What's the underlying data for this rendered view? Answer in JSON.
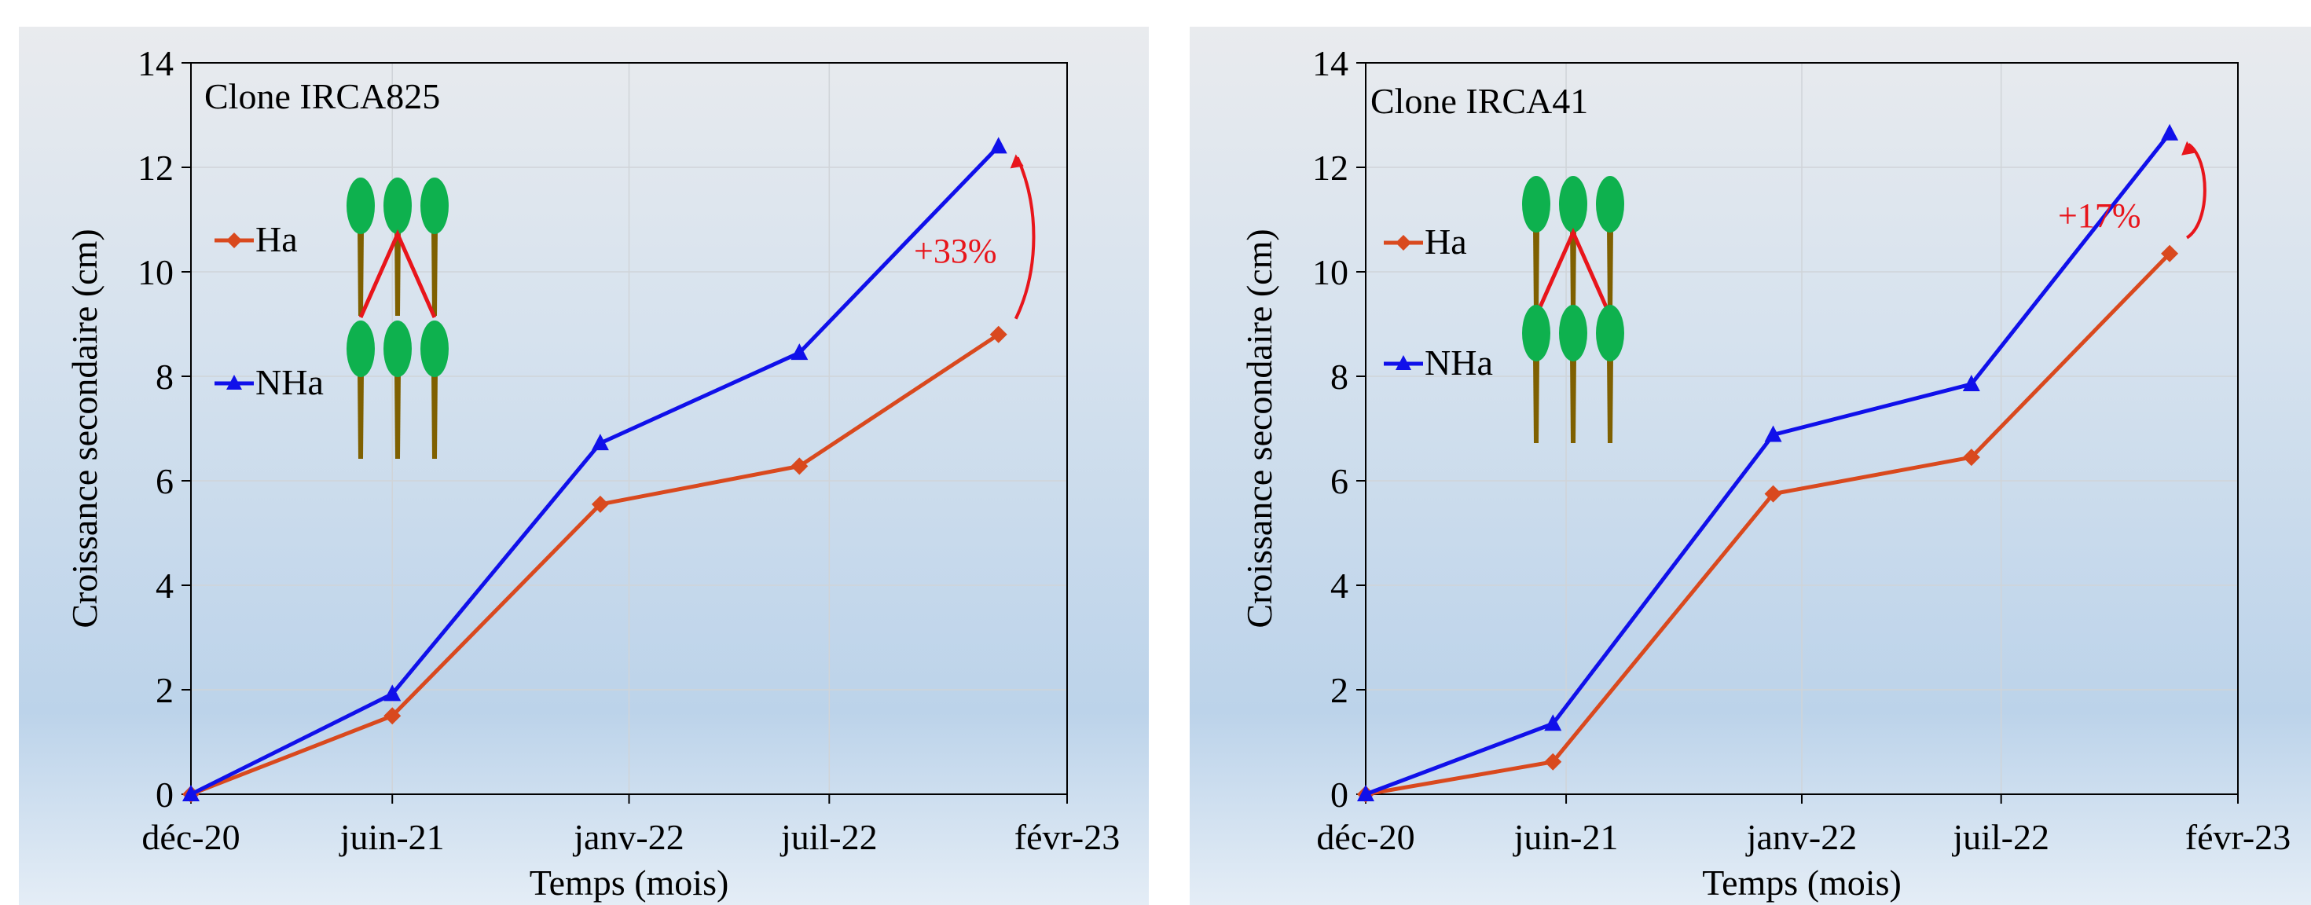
{
  "chart_data": [
    {
      "type": "line",
      "title": "Clone IRCA825",
      "xlabel": "Temps (mois)",
      "ylabel": "Croissance secondaire (cm)",
      "x_ticks": [
        "déc-20",
        "juin-21",
        "janv-22",
        "juil-22",
        "févr-23"
      ],
      "x_tick_values": [
        0,
        182,
        396,
        577,
        792
      ],
      "x_unit": "days since déc-20",
      "ylim": [
        0,
        14
      ],
      "y_ticks": [
        0,
        2,
        4,
        6,
        8,
        10,
        12,
        14
      ],
      "grid": true,
      "legend": "left",
      "annotation": "+33%",
      "x": [
        0,
        182,
        370,
        550,
        730
      ],
      "series": [
        {
          "name": "Ha",
          "color": "#d9491e",
          "marker": "diamond",
          "values": [
            0,
            1.5,
            5.55,
            6.28,
            8.8
          ]
        },
        {
          "name": "NHa",
          "color": "#1010ea",
          "marker": "triangle",
          "values": [
            0,
            1.92,
            6.72,
            8.45,
            12.4
          ]
        }
      ]
    },
    {
      "type": "line",
      "title": "Clone IRCA41",
      "xlabel": "Temps (mois)",
      "ylabel": "Croissance secondaire (cm)",
      "x_ticks": [
        "déc-20",
        "juin-21",
        "janv-22",
        "juil-22",
        "févr-23"
      ],
      "x_tick_values": [
        0,
        182,
        396,
        577,
        792
      ],
      "x_unit": "days since déc-20",
      "ylim": [
        0,
        14
      ],
      "y_ticks": [
        0,
        2,
        4,
        6,
        8,
        10,
        12,
        14
      ],
      "grid": true,
      "legend": "left",
      "annotation": "+17%",
      "x": [
        0,
        170,
        370,
        550,
        730
      ],
      "series": [
        {
          "name": "Ha",
          "color": "#d9491e",
          "marker": "diamond",
          "values": [
            0,
            0.62,
            5.75,
            6.45,
            10.35
          ]
        },
        {
          "name": "NHa",
          "color": "#1010ea",
          "marker": "triangle",
          "values": [
            0,
            1.35,
            6.88,
            7.85,
            12.65
          ]
        }
      ]
    }
  ],
  "colors": {
    "tree_crown": "#0eb14e",
    "tree_trunk": "#7f6000",
    "connector": "#e8151b",
    "annotation": "#e8151b"
  },
  "icons": [
    "tree-icon",
    "curved-arrow-icon"
  ]
}
